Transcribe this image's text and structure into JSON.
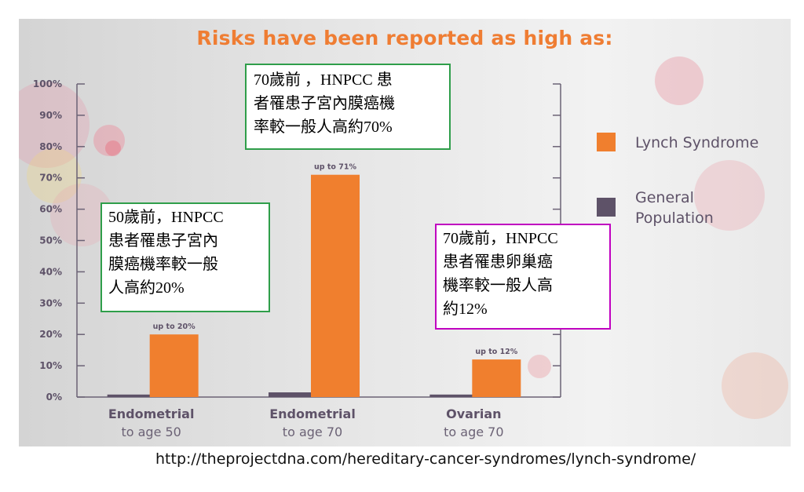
{
  "source_url": "http://theprojectdna.com/hereditary-cancer-syndromes/lynch-syndrome/",
  "chart_data": {
    "type": "bar",
    "title": "Risks have been reported as high as:",
    "ylim": [
      0,
      100
    ],
    "yticks": [
      "0%",
      "10%",
      "20%",
      "30%",
      "40%",
      "50%",
      "60%",
      "70%",
      "80%",
      "90%",
      "100%"
    ],
    "grid": false,
    "legend_position": "right",
    "categories": [
      {
        "name": "Endometrial",
        "sub": "to age 50"
      },
      {
        "name": "Endometrial",
        "sub": "to age 70"
      },
      {
        "name": "Ovarian",
        "sub": "to age 70"
      }
    ],
    "series": [
      {
        "name": "General Population",
        "legend_lines": [
          "General",
          "Population"
        ],
        "color": "#5e5268",
        "values": [
          0.8,
          1.5,
          0.8
        ]
      },
      {
        "name": "Lynch Syndrome",
        "legend_lines": [
          "Lynch Syndrome"
        ],
        "color": "#f07f2e",
        "values": [
          20,
          71,
          12
        ]
      }
    ],
    "data_labels": [
      "up to 20%",
      "up to 71%",
      "up to 12%"
    ]
  },
  "annotations": [
    {
      "lines": [
        "50歲前，HNPCC",
        "患者罹患子宮內",
        "膜癌機率較一般",
        "人高約20%"
      ],
      "border_color": "#2f9e4a"
    },
    {
      "lines": [
        "70歲前 ，HNPCC 患",
        "者罹患子宮內膜癌機",
        "率較一般人高約70%"
      ],
      "border_color": "#2f9e4a"
    },
    {
      "lines": [
        "70歲前，HNPCC",
        "患者罹患卵巢癌",
        "機率較一般人高",
        "約12%"
      ],
      "border_color": "#c000c0"
    }
  ]
}
